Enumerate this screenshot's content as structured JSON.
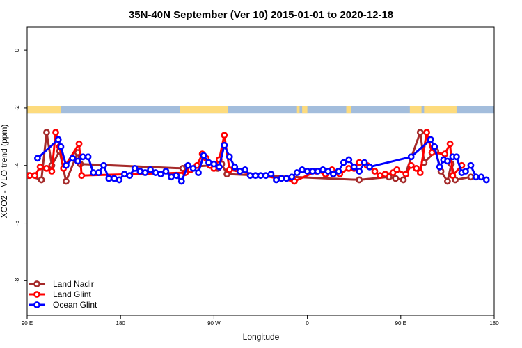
{
  "chart_data": {
    "type": "line",
    "title": "35N-40N September (Ver 10)   2015-01-01 to 2020-12-18",
    "xlabel": "Longitude",
    "ylabel": "XCO2 - MLO trend (ppm)",
    "xlim": [
      0,
      360
    ],
    "ylim": [
      -9.2,
      0.8
    ],
    "x_ticks": [
      {
        "value": 0,
        "label": "90 E"
      },
      {
        "value": 72,
        "label": "180"
      },
      {
        "value": 144,
        "label": "90 W"
      },
      {
        "value": 216,
        "label": "0"
      },
      {
        "value": 288,
        "label": "90 E"
      },
      {
        "value": 360,
        "label": "180"
      }
    ],
    "y_ticks": [
      {
        "value": 0,
        "label": "0"
      },
      {
        "value": -2,
        "label": "-2"
      },
      {
        "value": -4,
        "label": "-4"
      },
      {
        "value": -6,
        "label": "-6"
      },
      {
        "value": -8,
        "label": "-8"
      }
    ],
    "grid": false,
    "legend_position": "bottom-left",
    "land_ocean_band": {
      "y_range": [
        -2.2,
        -1.95
      ],
      "ocean_color": "#a3bddc",
      "land_color": "#fddb7d",
      "land_segments": [
        [
          0,
          26
        ],
        [
          118,
          155
        ],
        [
          208,
          210
        ],
        [
          212,
          216
        ],
        [
          246,
          250
        ],
        [
          295,
          304
        ],
        [
          306,
          331
        ]
      ]
    },
    "series": [
      {
        "name": "Land Nadir",
        "color": "#a52a2a",
        "points": [
          [
            1,
            -4.35
          ],
          [
            11,
            -4.5
          ],
          [
            15,
            -2.85
          ],
          [
            19,
            -4.0
          ],
          [
            25,
            -3.5
          ],
          [
            30,
            -4.55
          ],
          [
            39,
            -3.55
          ],
          [
            41,
            -3.95
          ],
          [
            120,
            -4.1
          ],
          [
            123,
            -4.05
          ],
          [
            142,
            -4.0
          ],
          [
            147,
            -4.1
          ],
          [
            150,
            -3.95
          ],
          [
            154,
            -4.3
          ],
          [
            256,
            -4.5
          ],
          [
            279,
            -4.4
          ],
          [
            284,
            -4.45
          ],
          [
            290,
            -4.5
          ],
          [
            303,
            -2.85
          ],
          [
            306,
            -3.9
          ],
          [
            315,
            -3.5
          ],
          [
            319,
            -4.2
          ],
          [
            324,
            -4.55
          ],
          [
            327,
            -3.95
          ],
          [
            330,
            -4.5
          ],
          [
            342,
            -4.4
          ]
        ]
      },
      {
        "name": "Land Glint",
        "color": "#ff0000",
        "points": [
          [
            2,
            -4.35
          ],
          [
            6,
            -4.35
          ],
          [
            10,
            -4.05
          ],
          [
            15,
            -4.1
          ],
          [
            19,
            -4.2
          ],
          [
            22,
            -2.85
          ],
          [
            25,
            -3.35
          ],
          [
            28,
            -4.1
          ],
          [
            40,
            -3.25
          ],
          [
            42,
            -4.35
          ],
          [
            122,
            -4.25
          ],
          [
            126,
            -4.15
          ],
          [
            131,
            -4.0
          ],
          [
            135,
            -3.6
          ],
          [
            138,
            -3.75
          ],
          [
            141,
            -4.0
          ],
          [
            144,
            -4.1
          ],
          [
            148,
            -3.8
          ],
          [
            152,
            -2.95
          ],
          [
            156,
            -4.15
          ],
          [
            206,
            -4.55
          ],
          [
            223,
            -4.2
          ],
          [
            230,
            -4.3
          ],
          [
            235,
            -4.15
          ],
          [
            241,
            -4.3
          ],
          [
            248,
            -4.1
          ],
          [
            252,
            -4.1
          ],
          [
            256,
            -3.9
          ],
          [
            262,
            -4.0
          ],
          [
            268,
            -4.2
          ],
          [
            272,
            -4.35
          ],
          [
            276,
            -4.3
          ],
          [
            282,
            -4.25
          ],
          [
            285,
            -4.15
          ],
          [
            292,
            -4.3
          ],
          [
            296,
            -4.0
          ],
          [
            300,
            -4.1
          ],
          [
            303,
            -4.25
          ],
          [
            308,
            -2.85
          ],
          [
            312,
            -3.55
          ],
          [
            322,
            -3.6
          ],
          [
            326,
            -3.25
          ],
          [
            328,
            -4.35
          ],
          [
            335,
            -4.0
          ]
        ]
      },
      {
        "name": "Ocean Glint",
        "color": "#0000ff",
        "points": [
          [
            8,
            -3.75
          ],
          [
            24,
            -3.1
          ],
          [
            26,
            -3.35
          ],
          [
            30,
            -4.0
          ],
          [
            35,
            -3.75
          ],
          [
            39,
            -3.85
          ],
          [
            43,
            -3.7
          ],
          [
            47,
            -3.7
          ],
          [
            51,
            -4.25
          ],
          [
            55,
            -4.25
          ],
          [
            59,
            -4.0
          ],
          [
            63,
            -4.45
          ],
          [
            67,
            -4.45
          ],
          [
            71,
            -4.5
          ],
          [
            75,
            -4.3
          ],
          [
            79,
            -4.35
          ],
          [
            83,
            -4.1
          ],
          [
            87,
            -4.2
          ],
          [
            91,
            -4.25
          ],
          [
            95,
            -4.15
          ],
          [
            99,
            -4.25
          ],
          [
            103,
            -4.3
          ],
          [
            107,
            -4.2
          ],
          [
            111,
            -4.4
          ],
          [
            115,
            -4.35
          ],
          [
            119,
            -4.55
          ],
          [
            124,
            -4.0
          ],
          [
            128,
            -4.1
          ],
          [
            132,
            -4.25
          ],
          [
            136,
            -3.65
          ],
          [
            140,
            -3.9
          ],
          [
            144,
            -3.95
          ],
          [
            148,
            -4.05
          ],
          [
            152,
            -3.3
          ],
          [
            156,
            -3.7
          ],
          [
            160,
            -4.05
          ],
          [
            164,
            -4.2
          ],
          [
            168,
            -4.15
          ],
          [
            172,
            -4.35
          ],
          [
            176,
            -4.35
          ],
          [
            180,
            -4.35
          ],
          [
            184,
            -4.35
          ],
          [
            188,
            -4.3
          ],
          [
            192,
            -4.5
          ],
          [
            196,
            -4.45
          ],
          [
            200,
            -4.45
          ],
          [
            204,
            -4.4
          ],
          [
            208,
            -4.25
          ],
          [
            212,
            -4.15
          ],
          [
            216,
            -4.2
          ],
          [
            220,
            -4.2
          ],
          [
            224,
            -4.2
          ],
          [
            228,
            -4.15
          ],
          [
            232,
            -4.2
          ],
          [
            236,
            -4.3
          ],
          [
            240,
            -4.2
          ],
          [
            244,
            -3.9
          ],
          [
            248,
            -3.8
          ],
          [
            252,
            -4.05
          ],
          [
            256,
            -4.2
          ],
          [
            260,
            -3.9
          ],
          [
            264,
            -4.05
          ],
          [
            296,
            -3.7
          ],
          [
            311,
            -3.1
          ],
          [
            314,
            -3.35
          ],
          [
            318,
            -4.05
          ],
          [
            321,
            -3.8
          ],
          [
            324,
            -3.85
          ],
          [
            328,
            -3.7
          ],
          [
            331,
            -3.7
          ],
          [
            335,
            -4.25
          ],
          [
            338,
            -4.2
          ],
          [
            342,
            -4.0
          ],
          [
            346,
            -4.4
          ],
          [
            350,
            -4.4
          ],
          [
            354,
            -4.5
          ]
        ]
      }
    ]
  }
}
